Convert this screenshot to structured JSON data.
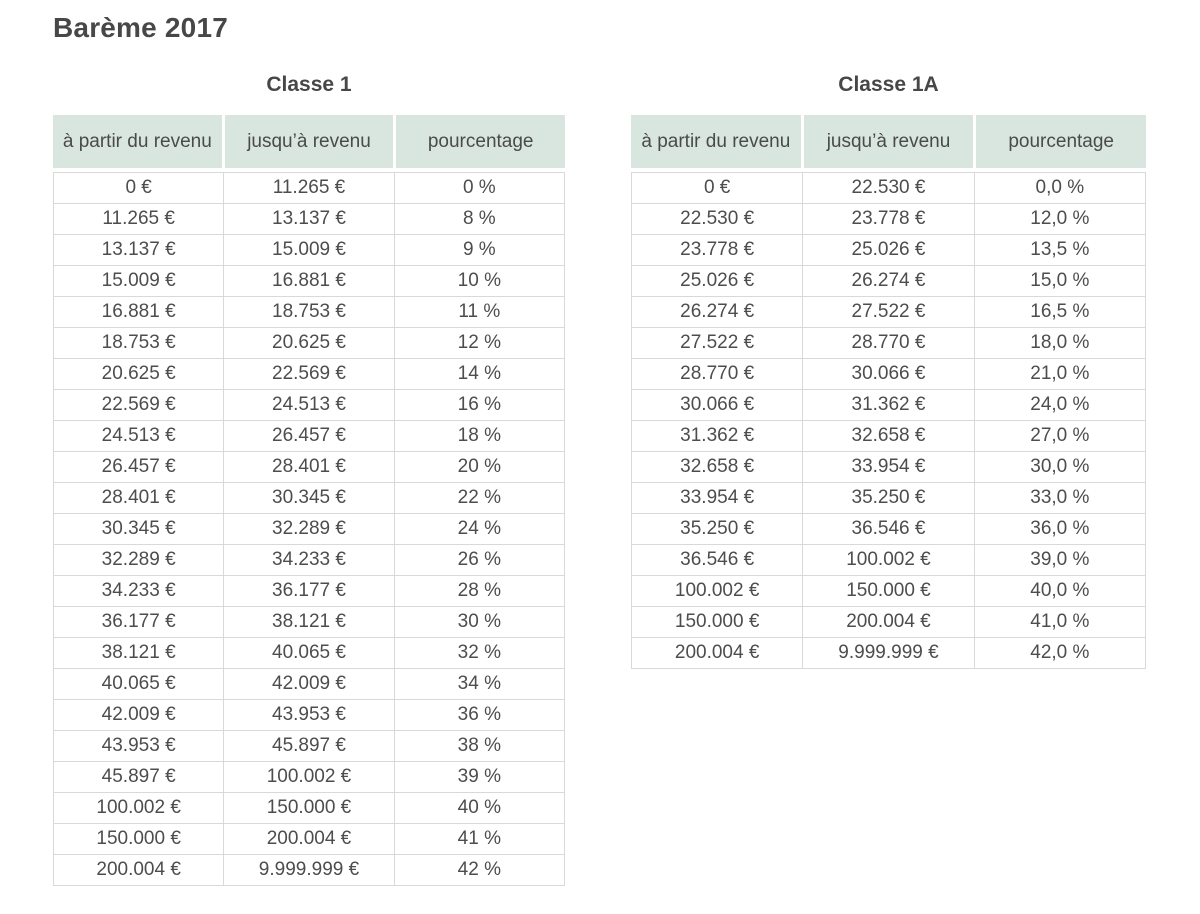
{
  "page": {
    "title": "Barème 2017"
  },
  "colors": {
    "header_bg": "#d9e6df",
    "grid_border": "#d9d9d9",
    "text": "#4d4d4d"
  },
  "columns": [
    "à partir du revenu",
    "jusqu’à revenu",
    "pourcentage"
  ],
  "tables": [
    {
      "caption": "Classe 1",
      "rows": [
        [
          "0 €",
          "11.265 €",
          "0 %"
        ],
        [
          "11.265 €",
          "13.137 €",
          "8 %"
        ],
        [
          "13.137 €",
          "15.009 €",
          "9 %"
        ],
        [
          "15.009 €",
          "16.881 €",
          "10 %"
        ],
        [
          "16.881 €",
          "18.753 €",
          "11 %"
        ],
        [
          "18.753 €",
          "20.625 €",
          "12 %"
        ],
        [
          "20.625 €",
          "22.569 €",
          "14 %"
        ],
        [
          "22.569 €",
          "24.513 €",
          "16 %"
        ],
        [
          "24.513 €",
          "26.457 €",
          "18 %"
        ],
        [
          "26.457 €",
          "28.401 €",
          "20 %"
        ],
        [
          "28.401 €",
          "30.345 €",
          "22 %"
        ],
        [
          "30.345 €",
          "32.289 €",
          "24 %"
        ],
        [
          "32.289 €",
          "34.233 €",
          "26 %"
        ],
        [
          "34.233 €",
          "36.177 €",
          "28 %"
        ],
        [
          "36.177 €",
          "38.121 €",
          "30 %"
        ],
        [
          "38.121 €",
          "40.065 €",
          "32 %"
        ],
        [
          "40.065 €",
          "42.009 €",
          "34 %"
        ],
        [
          "42.009 €",
          "43.953 €",
          "36 %"
        ],
        [
          "43.953 €",
          "45.897 €",
          "38 %"
        ],
        [
          "45.897 €",
          "100.002 €",
          "39 %"
        ],
        [
          "100.002 €",
          "150.000 €",
          "40 %"
        ],
        [
          "150.000 €",
          "200.004 €",
          "41 %"
        ],
        [
          "200.004 €",
          "9.999.999 €",
          "42 %"
        ]
      ]
    },
    {
      "caption": "Classe 1A",
      "rows": [
        [
          "0 €",
          "22.530 €",
          "0,0 %"
        ],
        [
          "22.530 €",
          "23.778 €",
          "12,0 %"
        ],
        [
          "23.778 €",
          "25.026 €",
          "13,5 %"
        ],
        [
          "25.026 €",
          "26.274 €",
          "15,0 %"
        ],
        [
          "26.274 €",
          "27.522 €",
          "16,5 %"
        ],
        [
          "27.522 €",
          "28.770 €",
          "18,0 %"
        ],
        [
          "28.770 €",
          "30.066 €",
          "21,0 %"
        ],
        [
          "30.066 €",
          "31.362 €",
          "24,0 %"
        ],
        [
          "31.362 €",
          "32.658 €",
          "27,0 %"
        ],
        [
          "32.658 €",
          "33.954 €",
          "30,0 %"
        ],
        [
          "33.954 €",
          "35.250 €",
          "33,0 %"
        ],
        [
          "35.250 €",
          "36.546 €",
          "36,0 %"
        ],
        [
          "36.546 €",
          "100.002 €",
          "39,0 %"
        ],
        [
          "100.002 €",
          "150.000 €",
          "40,0 %"
        ],
        [
          "150.000 €",
          "200.004 €",
          "41,0 %"
        ],
        [
          "200.004 €",
          "9.999.999 €",
          "42,0 %"
        ]
      ]
    }
  ]
}
